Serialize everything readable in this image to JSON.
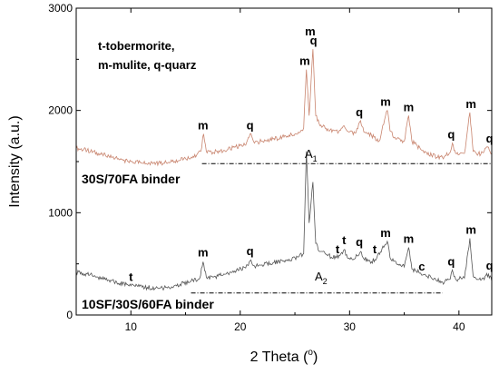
{
  "chart_data": {
    "type": "line",
    "xlabel": "2 Theta (°)",
    "xlabel_parts": [
      "2 Theta (",
      "o",
      ")"
    ],
    "ylabel": "Intensity (a.u.)",
    "xlim": [
      5,
      43
    ],
    "ylim": [
      0,
      3000
    ],
    "x_ticks": [
      10,
      20,
      30,
      40
    ],
    "y_ticks": [
      0,
      1000,
      2000,
      3000
    ],
    "grid": false,
    "legend_note": [
      "t-tobermorite,",
      "m-mulite, q-quarz"
    ],
    "colors": {
      "top_series": "#c9856f",
      "bottom_series": "#555555",
      "axes": "#000000"
    },
    "series": [
      {
        "name": "30S/70FA binder",
        "amorphous_label": "A",
        "amorphous_subscript": "1",
        "baseline_y": 1480,
        "baseline_x": [
          16.5,
          43
        ],
        "points": [
          [
            5,
            1630
          ],
          [
            6,
            1610
          ],
          [
            7,
            1580
          ],
          [
            8,
            1550
          ],
          [
            9,
            1520
          ],
          [
            10,
            1500
          ],
          [
            11,
            1485
          ],
          [
            12,
            1480
          ],
          [
            13,
            1485
          ],
          [
            14,
            1500
          ],
          [
            15,
            1530
          ],
          [
            16,
            1560
          ],
          [
            16.4,
            1600
          ],
          [
            16.65,
            1770
          ],
          [
            16.9,
            1600
          ],
          [
            17.5,
            1590
          ],
          [
            18.5,
            1610
          ],
          [
            19.5,
            1640
          ],
          [
            20.5,
            1660
          ],
          [
            20.9,
            1770
          ],
          [
            21.3,
            1680
          ],
          [
            22,
            1700
          ],
          [
            23,
            1720
          ],
          [
            24,
            1740
          ],
          [
            25,
            1770
          ],
          [
            25.8,
            1830
          ],
          [
            26.05,
            2400
          ],
          [
            26.3,
            1950
          ],
          [
            26.65,
            2600
          ],
          [
            26.9,
            1950
          ],
          [
            27.3,
            1850
          ],
          [
            28,
            1820
          ],
          [
            29,
            1790
          ],
          [
            29.5,
            1850
          ],
          [
            30,
            1790
          ],
          [
            30.5,
            1780
          ],
          [
            31,
            1900
          ],
          [
            31.3,
            1790
          ],
          [
            32,
            1760
          ],
          [
            32.7,
            1700
          ],
          [
            33.2,
            1910
          ],
          [
            33.45,
            2000
          ],
          [
            33.7,
            1800
          ],
          [
            34.3,
            1720
          ],
          [
            35,
            1700
          ],
          [
            35.4,
            1950
          ],
          [
            35.7,
            1700
          ],
          [
            36.5,
            1620
          ],
          [
            37.5,
            1560
          ],
          [
            38.5,
            1540
          ],
          [
            39.2,
            1590
          ],
          [
            39.4,
            1680
          ],
          [
            39.7,
            1580
          ],
          [
            40.5,
            1580
          ],
          [
            41,
            1980
          ],
          [
            41.3,
            1600
          ],
          [
            42,
            1570
          ],
          [
            42.7,
            1640
          ],
          [
            43,
            1580
          ]
        ],
        "peaks": [
          {
            "label": "m",
            "x": 16.6,
            "y": 1770
          },
          {
            "label": "q",
            "x": 20.9,
            "y": 1770
          },
          {
            "label": "m",
            "x": 25.9,
            "y": 2400
          },
          {
            "label": "m",
            "x": 26.4,
            "y": 2690
          },
          {
            "label": "q",
            "x": 26.7,
            "y": 2600
          },
          {
            "label": "q",
            "x": 30.9,
            "y": 1900
          },
          {
            "label": "m",
            "x": 33.3,
            "y": 2000
          },
          {
            "label": "m",
            "x": 35.4,
            "y": 1950
          },
          {
            "label": "q",
            "x": 39.3,
            "y": 1680
          },
          {
            "label": "m",
            "x": 41.1,
            "y": 1980
          },
          {
            "label": "q",
            "x": 42.8,
            "y": 1640
          }
        ]
      },
      {
        "name": "10SF/30S/60FA binder",
        "amorphous_label": "A",
        "amorphous_subscript": "2",
        "baseline_y": 215,
        "baseline_x": [
          15.5,
          38.5
        ],
        "points": [
          [
            5,
            420
          ],
          [
            6,
            400
          ],
          [
            7,
            370
          ],
          [
            8,
            340
          ],
          [
            9,
            310
          ],
          [
            10,
            285
          ],
          [
            10.8,
            280
          ],
          [
            11.5,
            270
          ],
          [
            12.5,
            260
          ],
          [
            13.5,
            270
          ],
          [
            14.5,
            300
          ],
          [
            15.5,
            330
          ],
          [
            16.3,
            360
          ],
          [
            16.6,
            520
          ],
          [
            16.9,
            370
          ],
          [
            17.5,
            370
          ],
          [
            18.5,
            400
          ],
          [
            19.5,
            430
          ],
          [
            20.5,
            460
          ],
          [
            20.9,
            530
          ],
          [
            21.3,
            480
          ],
          [
            22,
            490
          ],
          [
            23,
            510
          ],
          [
            24,
            530
          ],
          [
            25,
            560
          ],
          [
            25.8,
            600
          ],
          [
            26.05,
            1600
          ],
          [
            26.3,
            900
          ],
          [
            26.65,
            1300
          ],
          [
            26.9,
            700
          ],
          [
            27.3,
            620
          ],
          [
            28,
            580
          ],
          [
            28.8,
            560
          ],
          [
            29.2,
            600
          ],
          [
            29.5,
            640
          ],
          [
            29.8,
            560
          ],
          [
            30.3,
            540
          ],
          [
            31,
            620
          ],
          [
            31.3,
            550
          ],
          [
            32,
            520
          ],
          [
            32.5,
            560
          ],
          [
            33.2,
            680
          ],
          [
            33.45,
            720
          ],
          [
            33.7,
            560
          ],
          [
            34.3,
            500
          ],
          [
            35,
            470
          ],
          [
            35.4,
            660
          ],
          [
            35.7,
            450
          ],
          [
            36.5,
            410
          ],
          [
            37.5,
            360
          ],
          [
            38.5,
            320
          ],
          [
            39.2,
            350
          ],
          [
            39.4,
            440
          ],
          [
            39.7,
            350
          ],
          [
            40.5,
            360
          ],
          [
            41,
            750
          ],
          [
            41.3,
            380
          ],
          [
            42,
            340
          ],
          [
            42.7,
            400
          ],
          [
            43,
            330
          ]
        ],
        "peaks": [
          {
            "label": "t",
            "x": 10.0,
            "y": 290
          },
          {
            "label": "m",
            "x": 16.6,
            "y": 530
          },
          {
            "label": "q",
            "x": 20.9,
            "y": 540
          },
          {
            "label": "t",
            "x": 28.9,
            "y": 560
          },
          {
            "label": "t",
            "x": 29.5,
            "y": 650
          },
          {
            "label": "q",
            "x": 30.9,
            "y": 630
          },
          {
            "label": "t",
            "x": 32.3,
            "y": 560
          },
          {
            "label": "m",
            "x": 33.3,
            "y": 720
          },
          {
            "label": "m",
            "x": 35.4,
            "y": 660
          },
          {
            "label": "c",
            "x": 36.6,
            "y": 390
          },
          {
            "label": "q",
            "x": 39.3,
            "y": 440
          },
          {
            "label": "m",
            "x": 41.1,
            "y": 750
          },
          {
            "label": "q",
            "x": 42.8,
            "y": 400
          }
        ]
      }
    ]
  }
}
